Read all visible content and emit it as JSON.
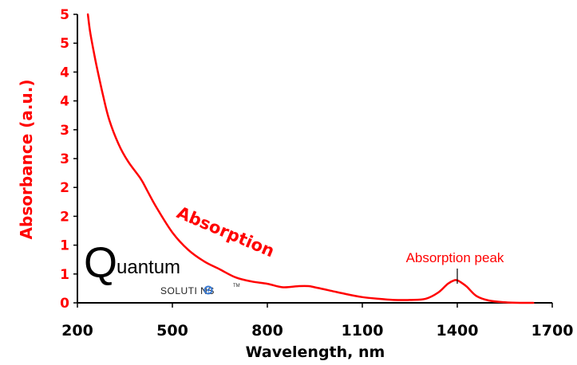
{
  "chart_data": {
    "type": "line",
    "xlabel": "Wavelength, nm",
    "ylabel": "Absorbance (a.u.)",
    "x_ticks": [
      "200",
      "500",
      "800",
      "1100",
      "1400",
      "1700"
    ],
    "y_ticks": [
      "0",
      "1",
      "1",
      "2",
      "2",
      "3",
      "3",
      "4",
      "4",
      "5",
      "5"
    ],
    "xlim": [
      200,
      1700
    ],
    "ylim": [
      0,
      5
    ],
    "grid": false,
    "series": [
      {
        "x": [
          233,
          240,
          250,
          260,
          280,
          300,
          330,
          360,
          400,
          420,
          450,
          500,
          550,
          600,
          650,
          700,
          750,
          800,
          850,
          900,
          930,
          950,
          1000,
          1050,
          1100,
          1150,
          1200,
          1250,
          1300,
          1340,
          1370,
          1390,
          1400,
          1410,
          1430,
          1460,
          1500,
          1550,
          1600,
          1640
        ],
        "y": [
          5.0,
          4.7,
          4.4,
          4.12,
          3.62,
          3.18,
          2.75,
          2.45,
          2.15,
          1.95,
          1.65,
          1.22,
          0.92,
          0.72,
          0.58,
          0.44,
          0.37,
          0.33,
          0.27,
          0.29,
          0.29,
          0.27,
          0.21,
          0.15,
          0.1,
          0.07,
          0.05,
          0.05,
          0.07,
          0.18,
          0.33,
          0.39,
          0.39,
          0.36,
          0.28,
          0.12,
          0.04,
          0.01,
          0.0,
          0.0
        ],
        "color": "#ff0000"
      }
    ],
    "annotations": [
      {
        "text": "Absorption",
        "x": 640,
        "y": 1.35
      },
      {
        "text": "Absorption peak",
        "x": 1400,
        "y": 0.39
      }
    ]
  },
  "logo": {
    "letter": "Q",
    "word": "uantum",
    "subtitle": "SOLUTI NS",
    "tm": "TM"
  },
  "colors": {
    "accent": "#ff0000",
    "axis": "#000000",
    "logo_dot": "#3a7bd5"
  }
}
